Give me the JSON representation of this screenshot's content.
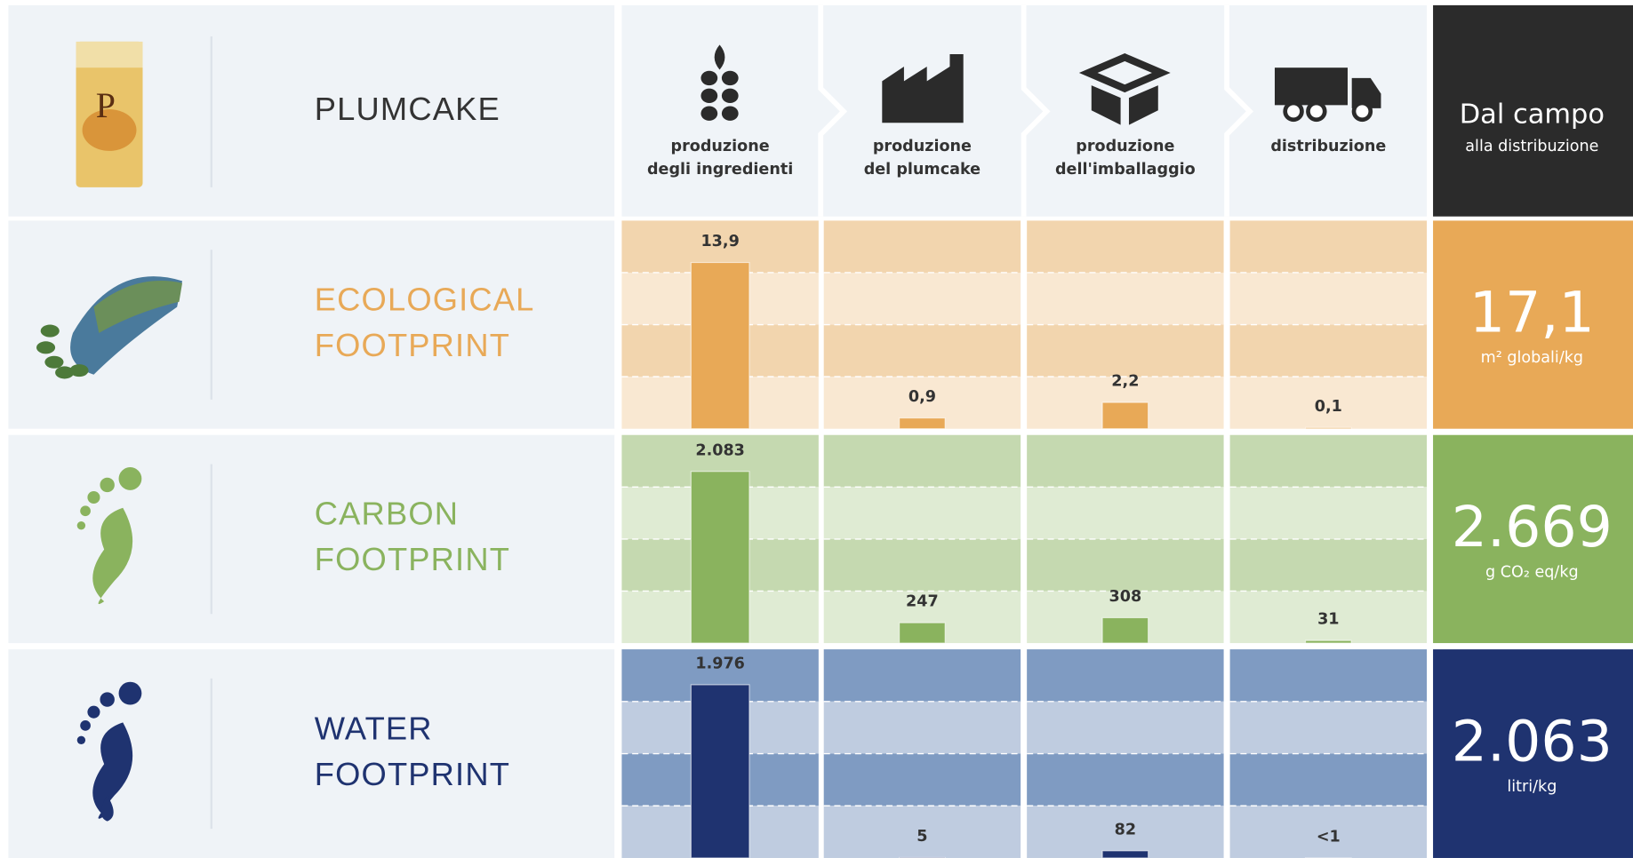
{
  "header": {
    "product": "PLUMCAKE",
    "stages": [
      [
        "produzione",
        "degli ingredienti"
      ],
      [
        "produzione",
        "del plumcake"
      ],
      [
        "produzione",
        "dell'imballaggio"
      ],
      [
        "distribuzione"
      ]
    ],
    "total_title": "Dal campo",
    "total_subtitle": "alla distribuzione"
  },
  "chart_data": [
    {
      "type": "bar",
      "title": [
        "ECOLOGICAL",
        "FOOTPRINT"
      ],
      "values": [
        13.9,
        0.9,
        2.2,
        0.1
      ],
      "value_labels": [
        "13,9",
        "0,9",
        "2,2",
        "0,1"
      ],
      "ylim": [
        0,
        17.4
      ],
      "total": "17,1",
      "unit": "m² globali/kg",
      "color": "#e8a957",
      "band_colors": [
        "#f2d5ae",
        "#f9e8d2"
      ],
      "total_color": "#e8a957"
    },
    {
      "type": "bar",
      "title": [
        "CARBON",
        "FOOTPRINT"
      ],
      "values": [
        2083,
        247,
        308,
        31
      ],
      "value_labels": [
        "2.083",
        "247",
        "308",
        "31"
      ],
      "ylim": [
        0,
        2525
      ],
      "total": "2.669",
      "unit": "g CO₂ eq/kg",
      "color": "#8ab35e",
      "band_colors": [
        "#c5d9b0",
        "#dfebd3"
      ],
      "total_color": "#8ab35e"
    },
    {
      "type": "bar",
      "title": [
        "WATER",
        "FOOTPRINT"
      ],
      "values": [
        1976,
        5,
        82,
        0.5
      ],
      "value_labels": [
        "1.976",
        "5",
        "82",
        "<1"
      ],
      "ylim": [
        0,
        2380
      ],
      "total": "2.063",
      "unit": "litri/kg",
      "color": "#1f3370",
      "band_colors": [
        "#7f9bc2",
        "#bfcce0"
      ],
      "total_color": "#1f3370"
    }
  ]
}
